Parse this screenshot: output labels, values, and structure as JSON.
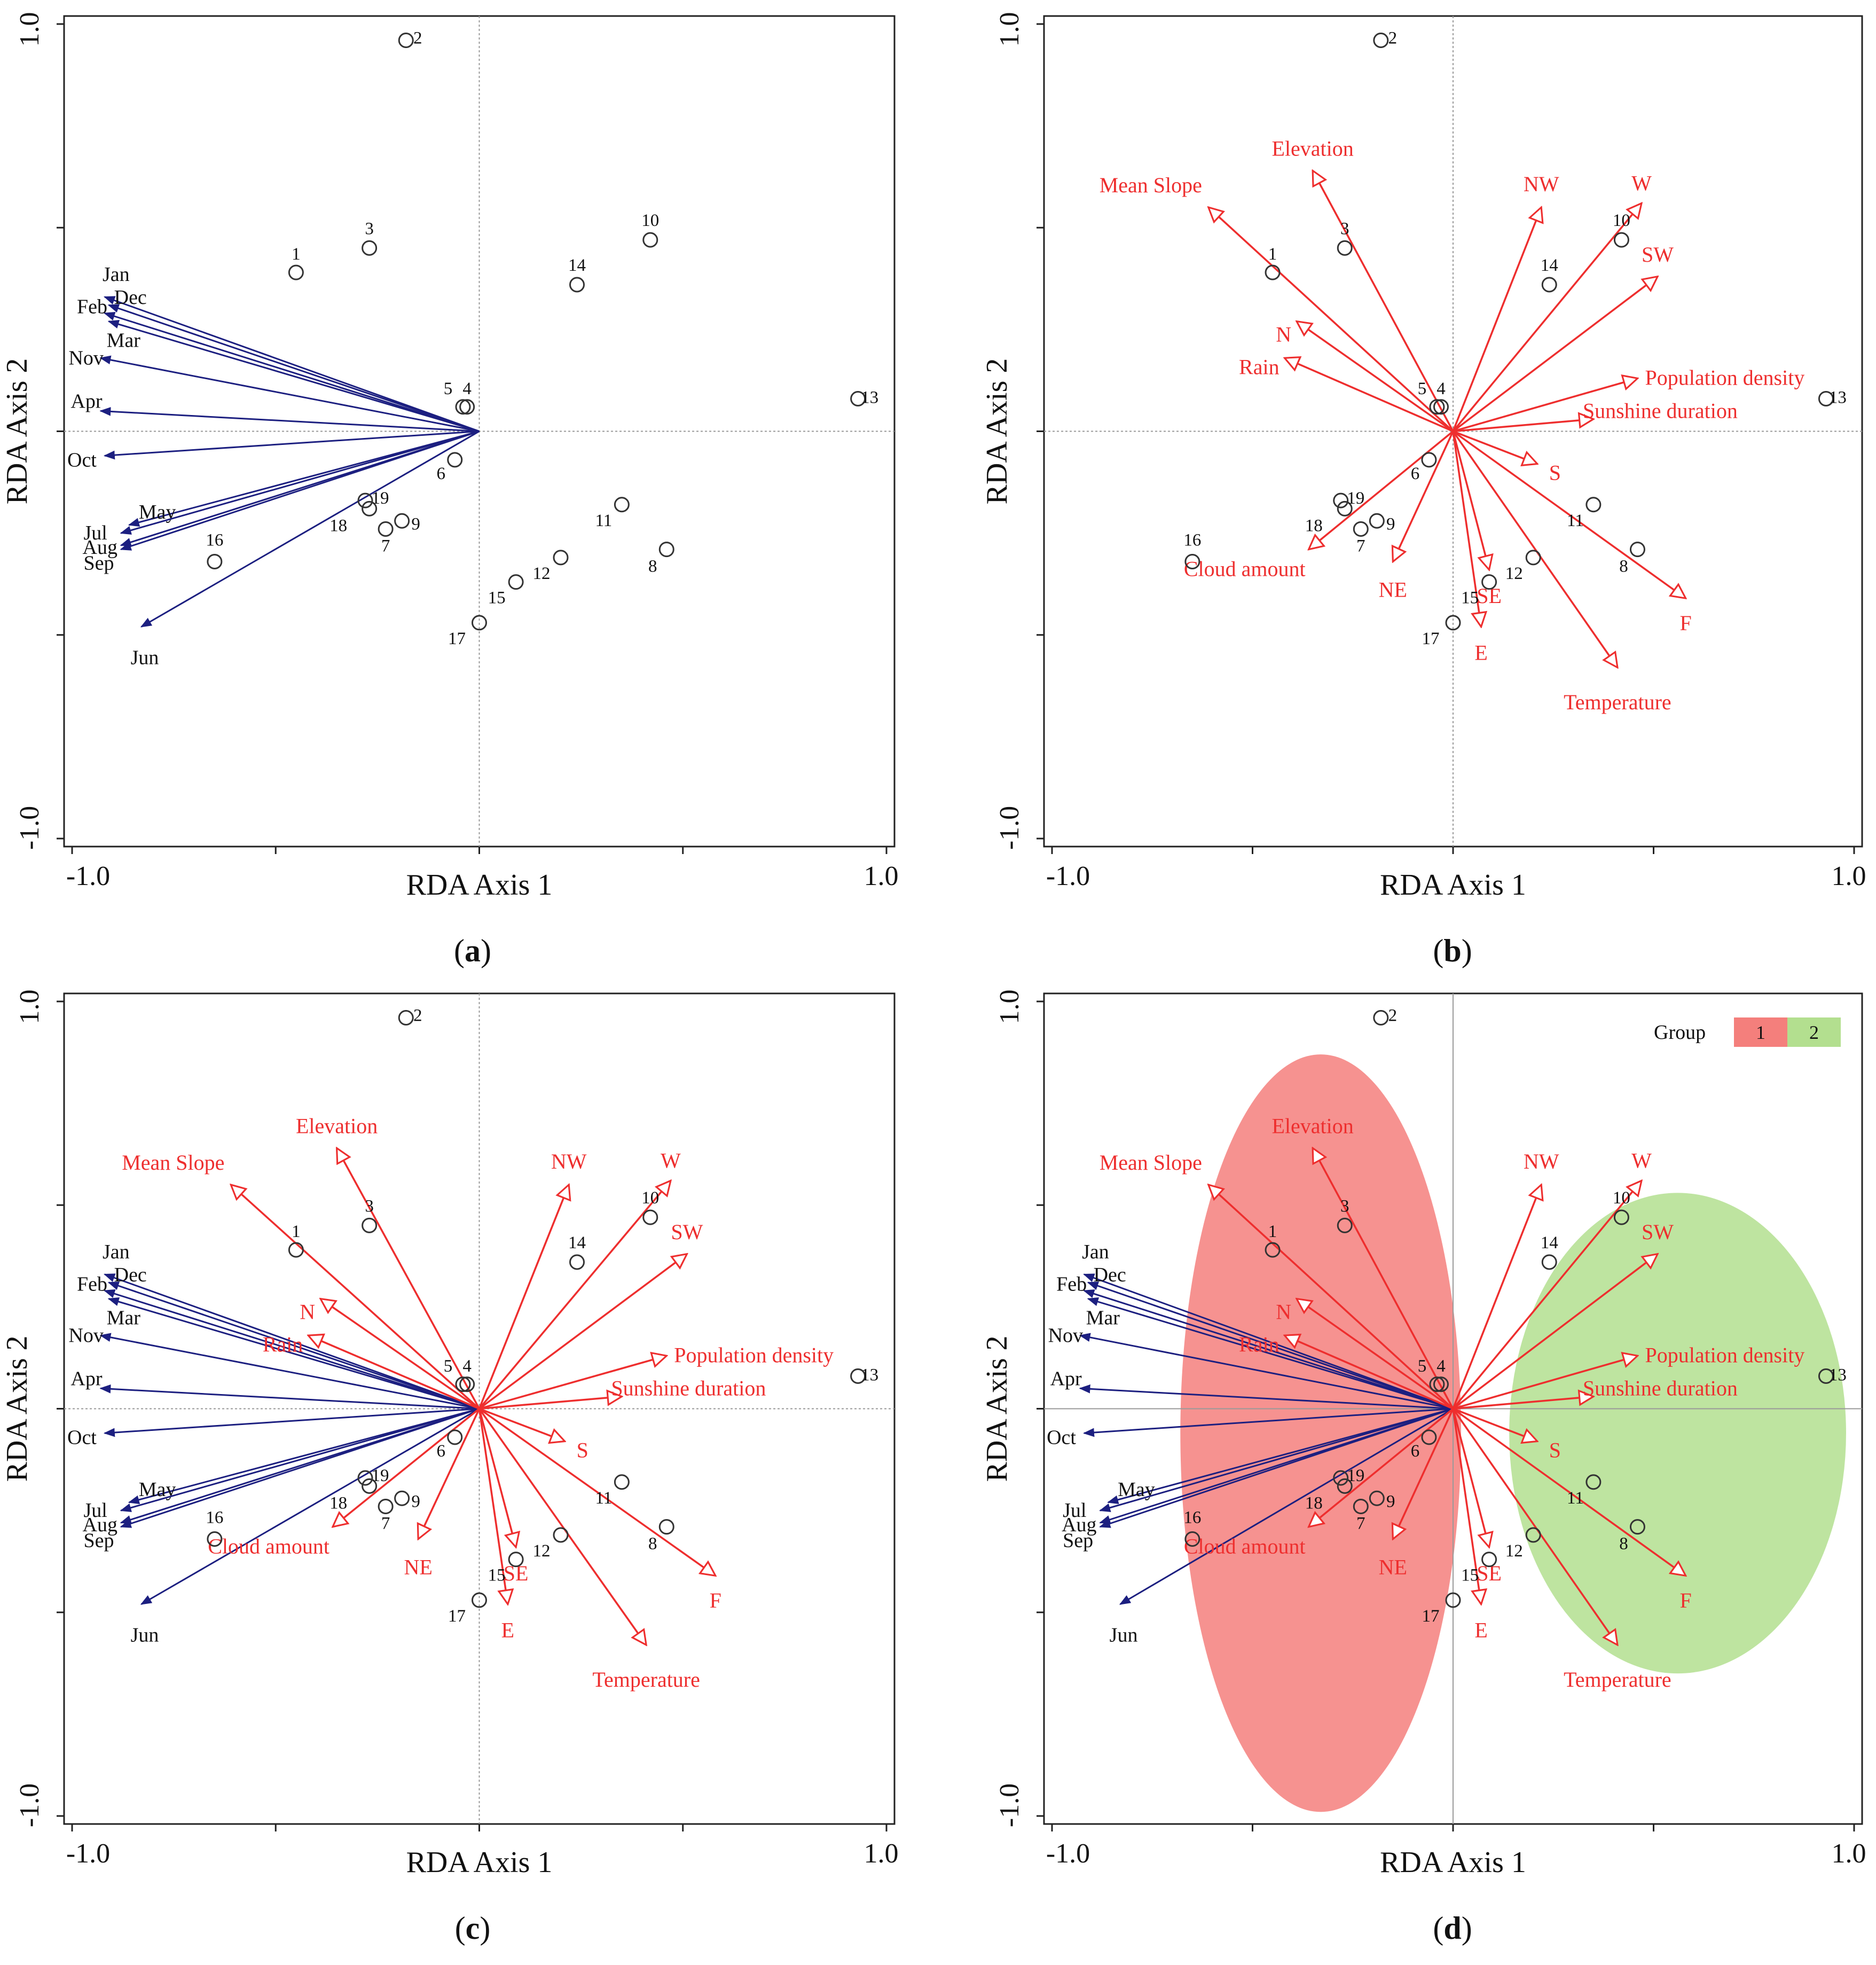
{
  "chart_data": {
    "type": "scatter",
    "subtype": "RDA triplot",
    "colors": {
      "month_arrow": "#1c1f80",
      "env_arrow": "#ee2e2e",
      "site": "#333333",
      "group1": "#f47f7c",
      "group2": "#b3df8f"
    },
    "panels": [
      {
        "id": "a",
        "label": "(a)",
        "show": [
          "sites",
          "months"
        ]
      },
      {
        "id": "b",
        "label": "(b)",
        "show": [
          "sites",
          "env"
        ]
      },
      {
        "id": "c",
        "label": "(c)",
        "show": [
          "sites",
          "months",
          "env"
        ]
      },
      {
        "id": "d",
        "label": "(d)",
        "show": [
          "groups",
          "sites",
          "months",
          "env",
          "legend"
        ]
      }
    ],
    "xlabel": "RDA Axis 1",
    "ylabel": "RDA Axis 2",
    "xlim": [
      -1.0,
      1.0
    ],
    "ylim": [
      -1.0,
      1.0
    ],
    "xticks": [
      -1.0,
      -0.5,
      0.0,
      0.5,
      1.0
    ],
    "yticks": [
      -1.0,
      -0.5,
      0.0,
      0.5,
      1.0
    ],
    "xtick_labels": [
      "-1.0",
      "1.0"
    ],
    "ytick_labels": [
      "-1.0",
      "1.0"
    ],
    "sites": [
      {
        "id": "1",
        "x": -0.45,
        "y": 0.39
      },
      {
        "id": "2",
        "x": -0.18,
        "y": 0.96
      },
      {
        "id": "3",
        "x": -0.27,
        "y": 0.45
      },
      {
        "id": "4",
        "x": -0.03,
        "y": 0.06
      },
      {
        "id": "5",
        "x": -0.04,
        "y": 0.06
      },
      {
        "id": "6",
        "x": -0.06,
        "y": -0.07
      },
      {
        "id": "7",
        "x": -0.23,
        "y": -0.24
      },
      {
        "id": "8",
        "x": 0.46,
        "y": -0.29
      },
      {
        "id": "9",
        "x": -0.19,
        "y": -0.22
      },
      {
        "id": "10",
        "x": 0.42,
        "y": 0.47
      },
      {
        "id": "11",
        "x": 0.35,
        "y": -0.18
      },
      {
        "id": "12",
        "x": 0.2,
        "y": -0.31
      },
      {
        "id": "13",
        "x": 0.93,
        "y": 0.08
      },
      {
        "id": "14",
        "x": 0.24,
        "y": 0.36
      },
      {
        "id": "15",
        "x": 0.09,
        "y": -0.37
      },
      {
        "id": "16",
        "x": -0.65,
        "y": -0.32
      },
      {
        "id": "17",
        "x": 0.0,
        "y": -0.47
      },
      {
        "id": "18",
        "x": -0.27,
        "y": -0.19
      },
      {
        "id": "19",
        "x": -0.28,
        "y": -0.17
      }
    ],
    "months": [
      {
        "name": "Jan",
        "x": -0.92,
        "y": 0.33
      },
      {
        "name": "Dec",
        "x": -0.91,
        "y": 0.31
      },
      {
        "name": "Feb",
        "x": -0.92,
        "y": 0.29
      },
      {
        "name": "Mar",
        "x": -0.91,
        "y": 0.27
      },
      {
        "name": "Nov",
        "x": -0.93,
        "y": 0.18
      },
      {
        "name": "Apr",
        "x": -0.93,
        "y": 0.05
      },
      {
        "name": "Oct",
        "x": -0.92,
        "y": -0.06
      },
      {
        "name": "May",
        "x": -0.86,
        "y": -0.23
      },
      {
        "name": "Jul",
        "x": -0.88,
        "y": -0.25
      },
      {
        "name": "Aug",
        "x": -0.88,
        "y": -0.28
      },
      {
        "name": "Sep",
        "x": -0.88,
        "y": -0.29
      },
      {
        "name": "Jun",
        "x": -0.83,
        "y": -0.48
      }
    ],
    "env": [
      {
        "name": "Elevation",
        "x": -0.35,
        "y": 0.64
      },
      {
        "name": "Mean Slope",
        "x": -0.61,
        "y": 0.55
      },
      {
        "name": "N",
        "x": -0.39,
        "y": 0.27
      },
      {
        "name": "Rain",
        "x": -0.42,
        "y": 0.18
      },
      {
        "name": "NW",
        "x": 0.22,
        "y": 0.55
      },
      {
        "name": "W",
        "x": 0.47,
        "y": 0.56
      },
      {
        "name": "SW",
        "x": 0.51,
        "y": 0.38
      },
      {
        "name": "Population density",
        "x": 0.46,
        "y": 0.13
      },
      {
        "name": "Sunshine duration",
        "x": 0.35,
        "y": 0.03
      },
      {
        "name": "S",
        "x": 0.21,
        "y": -0.08
      },
      {
        "name": "F",
        "x": 0.58,
        "y": -0.41
      },
      {
        "name": "Temperature",
        "x": 0.41,
        "y": -0.58
      },
      {
        "name": "E",
        "x": 0.07,
        "y": -0.48
      },
      {
        "name": "SE",
        "x": 0.09,
        "y": -0.34
      },
      {
        "name": "NE",
        "x": -0.15,
        "y": -0.32
      },
      {
        "name": "Cloud amount",
        "x": -0.36,
        "y": -0.29
      }
    ],
    "groups": [
      {
        "label": "1",
        "color": "#f47f7c",
        "cx": -0.33,
        "cy": -0.06,
        "rx": 0.35,
        "ry": 0.93
      },
      {
        "label": "2",
        "color": "#b3df8f",
        "cx": 0.56,
        "cy": -0.06,
        "rx": 0.42,
        "ry": 0.59
      }
    ],
    "legend": {
      "title": "Group",
      "position": "top-right"
    }
  }
}
